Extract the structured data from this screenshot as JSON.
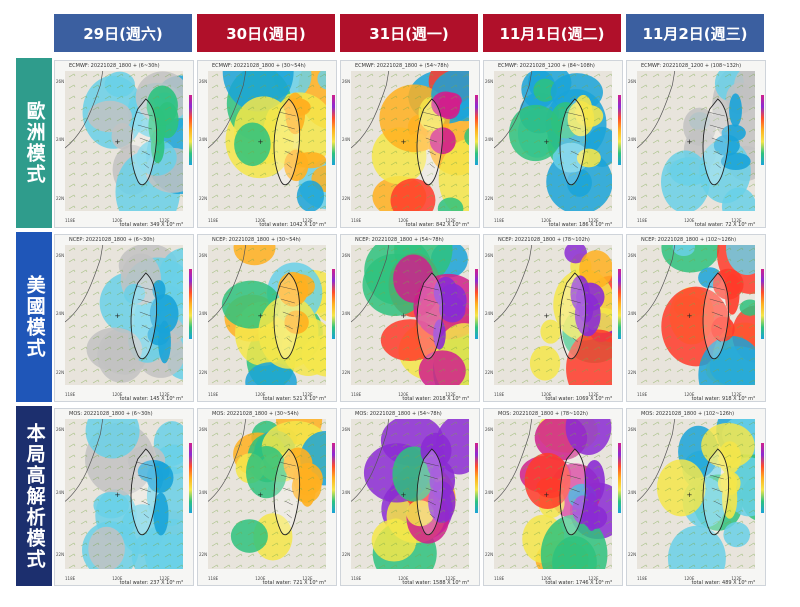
{
  "columns": [
    {
      "label": "29日(週六)",
      "color": "#3b5fa0"
    },
    {
      "label": "30日(週日)",
      "color": "#b0102a"
    },
    {
      "label": "31日(週一)",
      "color": "#b0102a"
    },
    {
      "label": "11月1日(週二)",
      "color": "#b0102a"
    },
    {
      "label": "11月2日(週三)",
      "color": "#3b5fa0"
    }
  ],
  "rows": [
    {
      "label": "歐洲模式",
      "color": "#2f9c8c",
      "captions": [
        "ECMWF: 20221028_1800 + (6~30h)",
        "ECMWF: 20221028_1800 + (30~54h)",
        "ECMWF: 20221028_1800 + (54~78h)",
        "ECMWF: 20221028_1200 + (84~108h)",
        "ECMWF: 20221028_1200 + (108~132h)"
      ],
      "totals": [
        "total water: 349 X 10⁶ m³",
        "total water: 1042 X 10⁶ m³",
        "total water: 842 X 10⁶ m³",
        "total water: 186 X 10⁶ m³",
        "total water: 72 X 10⁶ m³"
      ]
    },
    {
      "label": "美國模式",
      "color": "#1f56b8",
      "captions": [
        "NCEP: 20221028_1800 + (6~30h)",
        "NCEP: 20221028_1800 + (30~54h)",
        "NCEP: 20221028_1800 + (54~78h)",
        "NCEP: 20221028_1800 + (78~102h)",
        "NCEP: 20221028_1800 + (102~126h)"
      ],
      "totals": [
        "total water: 145 X 10⁶ m³",
        "total water: 521 X 10⁶ m³",
        "total water: 2018 X 10⁶ m³",
        "total water: 1069 X 10⁶ m³",
        "total water: 918 X 10⁶ m³"
      ]
    },
    {
      "label": "本局高解析模式",
      "color": "#1c2f6e",
      "captions": [
        "MOS: 20221028_1800 + (6~30h)",
        "MOS: 20221028_1800 + (30~54h)",
        "MOS: 20221028_1800 + (54~78h)",
        "MOS: 20221028_1800 + (78~102h)",
        "MOS: 20221028_1800 + (102~126h)"
      ],
      "totals": [
        "total water: 237 X 10⁶ m³",
        "total water: 721 X 10⁶ m³",
        "total water: 1588 X 10⁶ m³",
        "total water: 1746 X 10⁶ m³",
        "total water: 489 X 10⁶ m³"
      ]
    }
  ],
  "lat_labels": [
    "26N",
    "24N",
    "22N"
  ],
  "lon_labels": [
    "118E",
    "120E",
    "122E"
  ],
  "intensity": [
    [
      0.25,
      0.55,
      0.75,
      0.35,
      0.2
    ],
    [
      0.2,
      0.5,
      0.85,
      0.8,
      0.6
    ],
    [
      0.2,
      0.55,
      0.9,
      0.9,
      0.45
    ]
  ],
  "palette": {
    "low": "#e8e4dc",
    "grey": "#c2c2c2",
    "blue": "#1aa3d8",
    "cyan": "#68d0e8",
    "green": "#2ec27e",
    "yellow": "#f4e64a",
    "orange": "#ffb020",
    "red": "#ff3b2a",
    "magenta": "#d01f8c",
    "purple": "#8b2bd3"
  }
}
